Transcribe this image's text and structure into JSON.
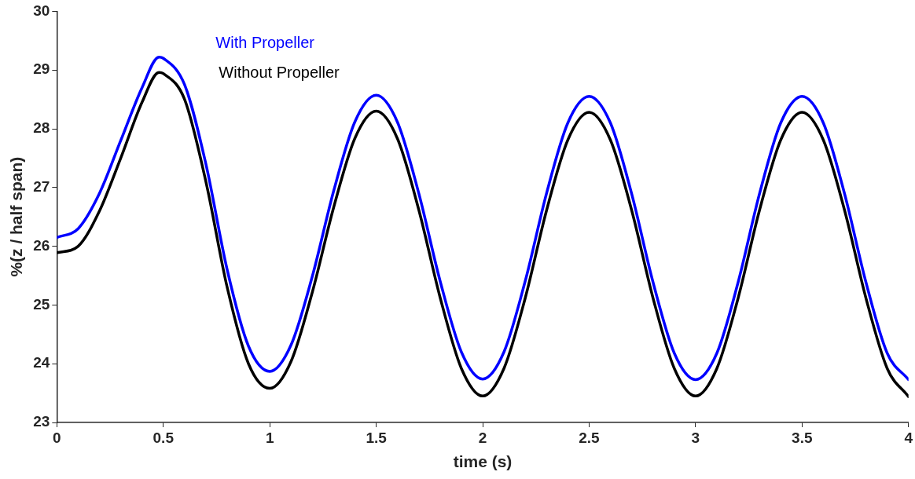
{
  "chart_data": {
    "type": "line",
    "xlabel": "time (s)",
    "ylabel": "%(z / half span)",
    "x": [
      0,
      0.1,
      0.2,
      0.3,
      0.4,
      0.48,
      0.5,
      0.6,
      0.7,
      0.8,
      0.9,
      1.0,
      1.1,
      1.2,
      1.3,
      1.4,
      1.5,
      1.6,
      1.7,
      1.8,
      1.9,
      2.0,
      2.1,
      2.2,
      2.3,
      2.4,
      2.5,
      2.6,
      2.7,
      2.8,
      2.9,
      3.0,
      3.1,
      3.2,
      3.3,
      3.4,
      3.5,
      3.6,
      3.7,
      3.8,
      3.9,
      4.0
    ],
    "series": [
      {
        "name": "With Propeller",
        "color": "#0000ff",
        "values": [
          26.15,
          26.3,
          26.9,
          27.8,
          28.7,
          29.22,
          29.2,
          28.75,
          27.4,
          25.6,
          24.3,
          23.87,
          24.32,
          25.49,
          26.94,
          28.12,
          28.57,
          28.11,
          26.9,
          25.41,
          24.2,
          23.74,
          24.2,
          25.41,
          26.9,
          28.1,
          28.55,
          28.1,
          26.89,
          25.39,
          24.18,
          23.73,
          24.18,
          25.39,
          26.89,
          28.1,
          28.55,
          28.1,
          26.89,
          25.39,
          24.18,
          23.73
        ]
      },
      {
        "name": "Without Propeller",
        "color": "#000000",
        "values": [
          25.89,
          26.0,
          26.6,
          27.5,
          28.45,
          28.96,
          28.94,
          28.5,
          27.1,
          25.3,
          24.0,
          23.58,
          24.04,
          25.22,
          26.66,
          27.84,
          28.3,
          27.83,
          26.62,
          25.13,
          23.92,
          23.45,
          23.92,
          25.12,
          26.61,
          27.81,
          28.28,
          27.81,
          26.61,
          25.12,
          23.92,
          23.45,
          23.92,
          25.12,
          26.61,
          27.81,
          28.28,
          27.81,
          26.61,
          25.12,
          23.92,
          23.44
        ]
      }
    ],
    "xlim": [
      0,
      4
    ],
    "xticks": [
      0,
      0.5,
      1,
      1.5,
      2,
      2.5,
      3,
      3.5,
      4
    ],
    "ylim": [
      23,
      30
    ],
    "yticks": [
      23,
      24,
      25,
      26,
      27,
      28,
      29,
      30
    ],
    "grid": false,
    "legend": "top left",
    "marker": "none",
    "line_style": "solid"
  }
}
